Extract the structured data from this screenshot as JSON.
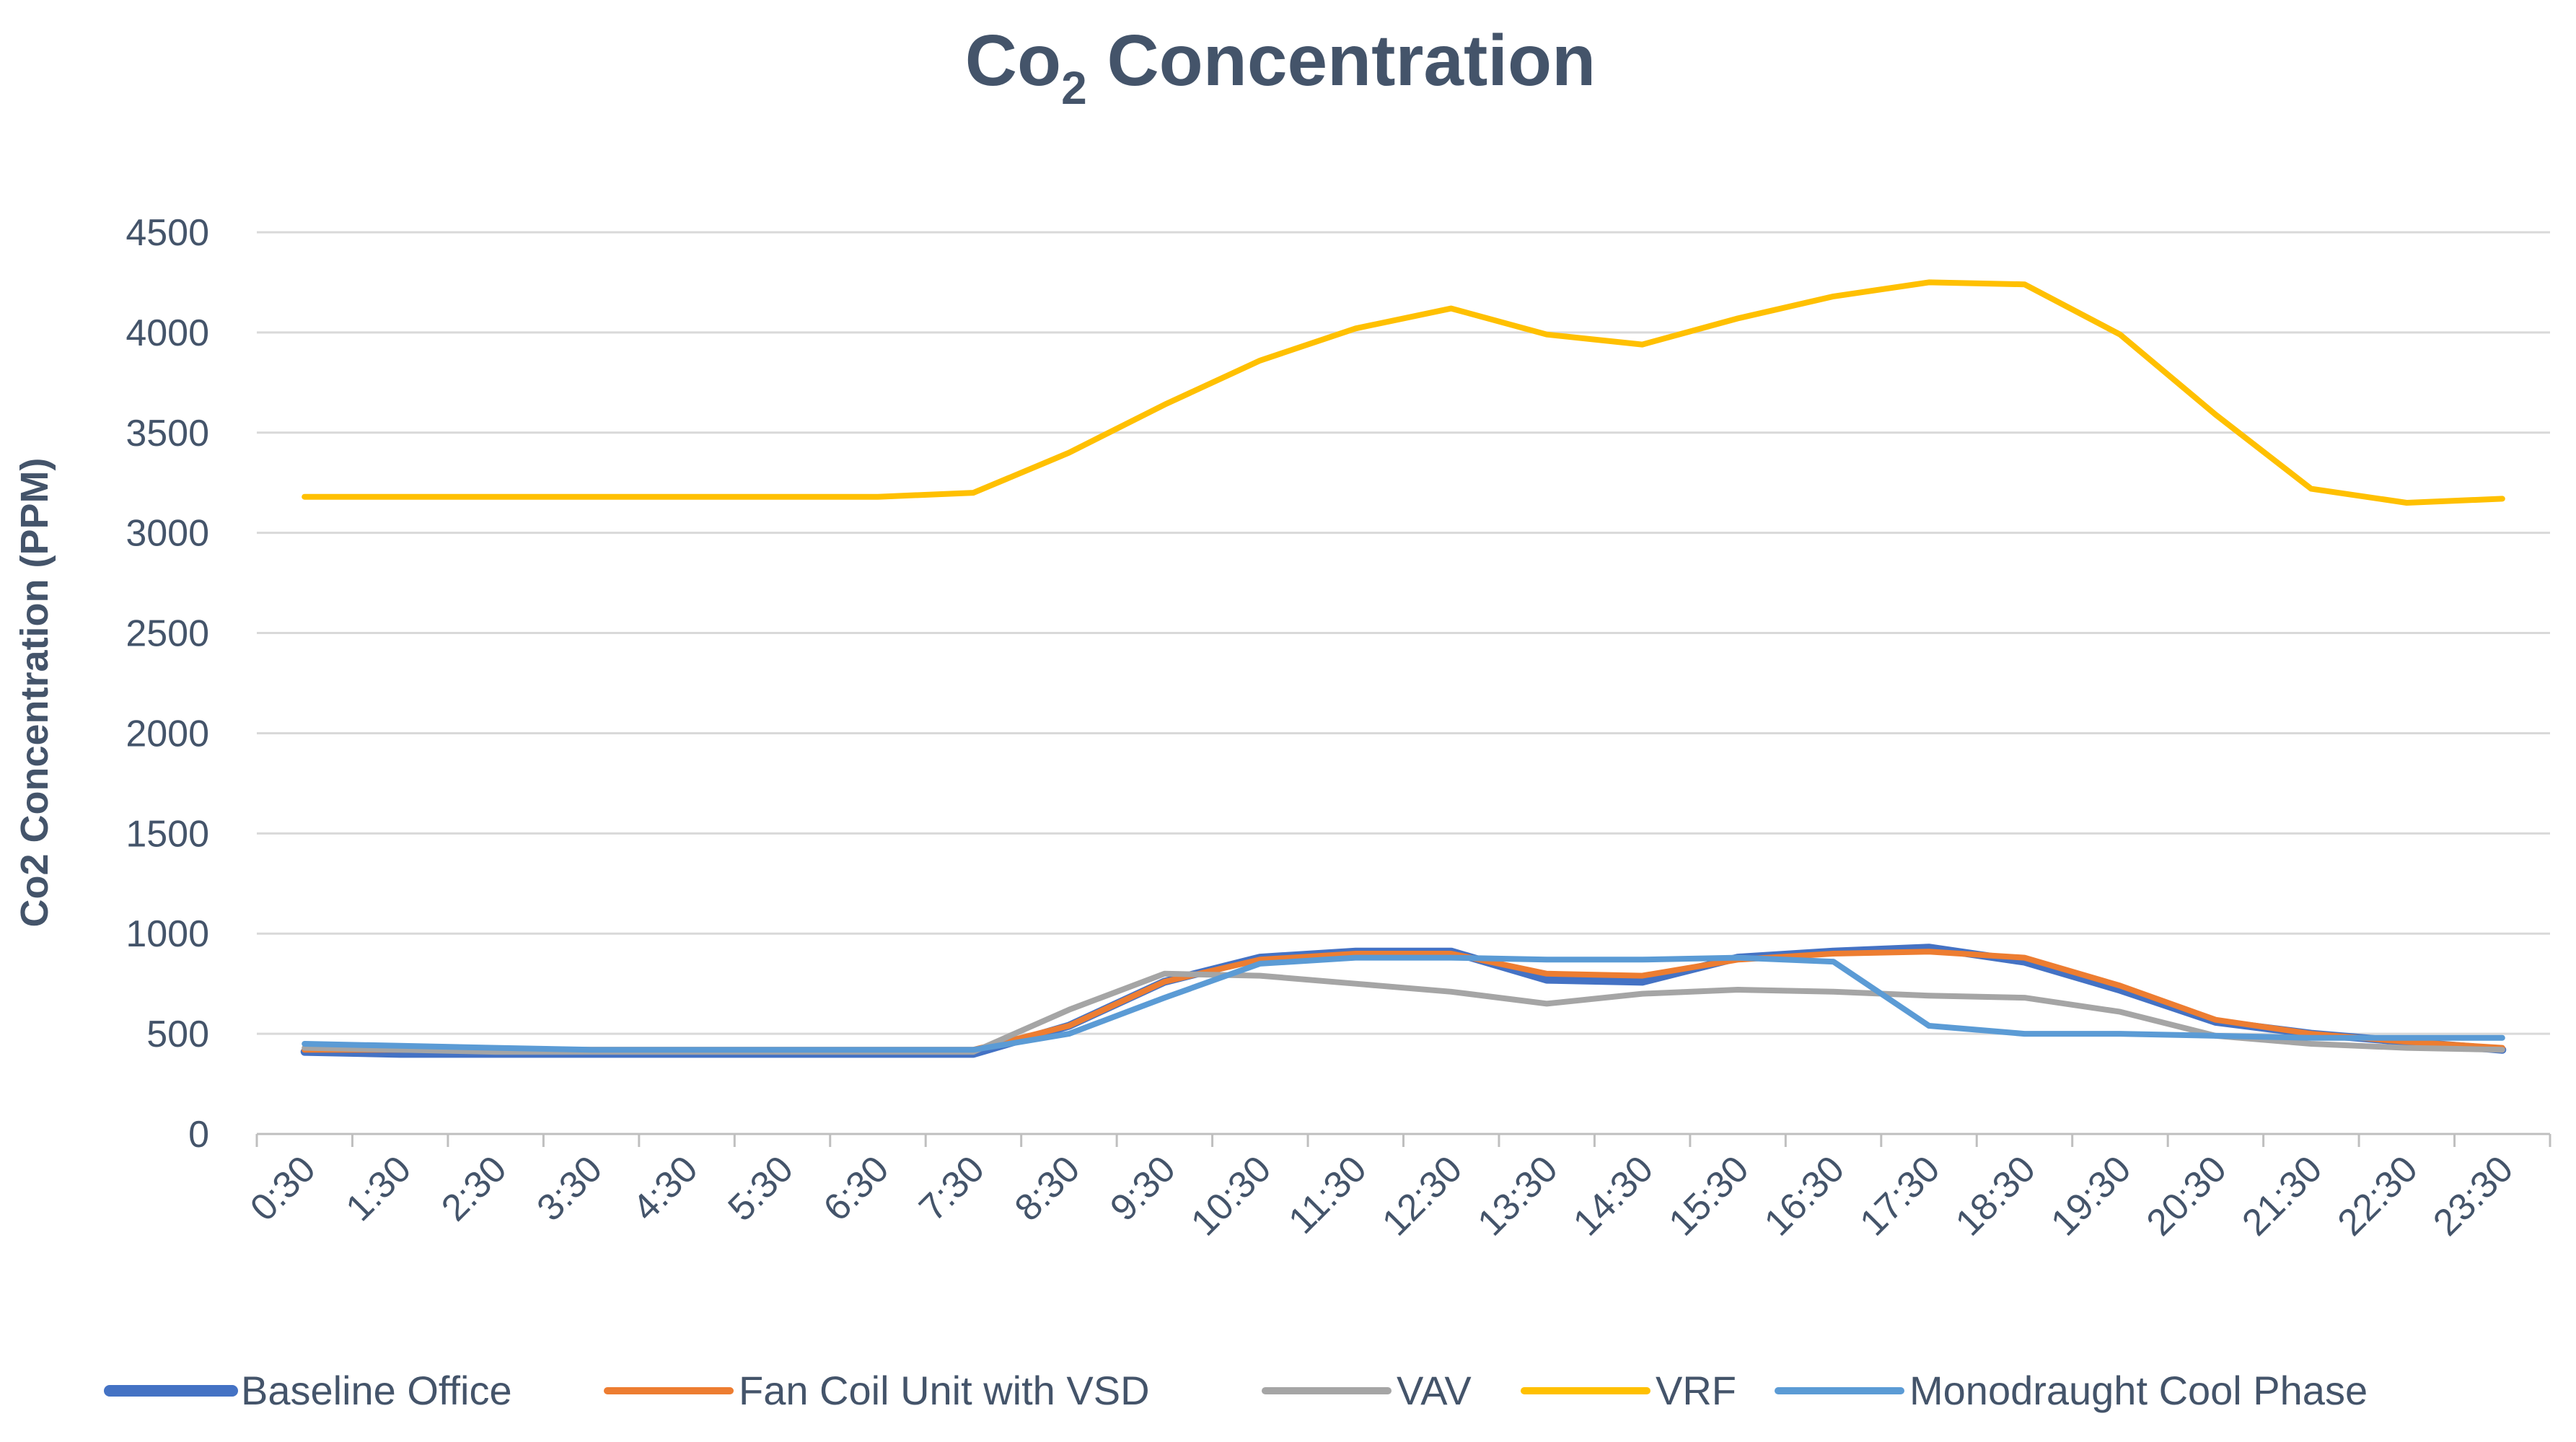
{
  "chart_data": {
    "type": "line",
    "title": "Co",
    "title_subscript": "2",
    "title_rest": " Concentration",
    "xlabel": "",
    "ylabel": "Co2 Concentration (PPM)",
    "ylim": [
      0,
      4500
    ],
    "yticks": [
      0,
      500,
      1000,
      1500,
      2000,
      2500,
      3000,
      3500,
      4000,
      4500
    ],
    "grid": true,
    "legend_position": "bottom",
    "categories": [
      "0:30",
      "1:30",
      "2:30",
      "3:30",
      "4:30",
      "5:30",
      "6:30",
      "7:30",
      "8:30",
      "9:30",
      "10:30",
      "11:30",
      "12:30",
      "13:30",
      "14:30",
      "15:30",
      "16:30",
      "17:30",
      "18:30",
      "19:30",
      "20:30",
      "21:30",
      "22:30",
      "23:30"
    ],
    "series": [
      {
        "name": "Baseline Office",
        "color": "#4472C4",
        "values": [
          410,
          400,
          400,
          400,
          400,
          400,
          400,
          400,
          540,
          760,
          880,
          910,
          910,
          770,
          760,
          880,
          910,
          930,
          860,
          720,
          560,
          500,
          460,
          420
        ]
      },
      {
        "name": "Fan Coil Unit with VSD",
        "color": "#ED7D31",
        "values": [
          420,
          420,
          420,
          420,
          420,
          420,
          420,
          420,
          540,
          760,
          870,
          900,
          900,
          800,
          790,
          870,
          900,
          910,
          880,
          740,
          570,
          500,
          460,
          430
        ]
      },
      {
        "name": "VAV",
        "color": "#A5A5A5",
        "values": [
          430,
          420,
          410,
          410,
          410,
          410,
          410,
          410,
          620,
          800,
          790,
          750,
          710,
          650,
          700,
          720,
          710,
          690,
          680,
          610,
          490,
          450,
          430,
          420
        ]
      },
      {
        "name": "VRF",
        "color": "#FFC000",
        "values": [
          3180,
          3180,
          3180,
          3180,
          3180,
          3180,
          3180,
          3200,
          3400,
          3640,
          3860,
          4020,
          4120,
          3990,
          3940,
          4070,
          4180,
          4250,
          4240,
          3990,
          3590,
          3220,
          3150,
          3170
        ]
      },
      {
        "name": "Monodraught Cool Phase",
        "color": "#5B9BD5",
        "values": [
          450,
          440,
          430,
          420,
          420,
          420,
          420,
          420,
          500,
          680,
          850,
          880,
          880,
          870,
          870,
          880,
          860,
          540,
          500,
          500,
          490,
          480,
          480,
          480
        ]
      }
    ]
  }
}
